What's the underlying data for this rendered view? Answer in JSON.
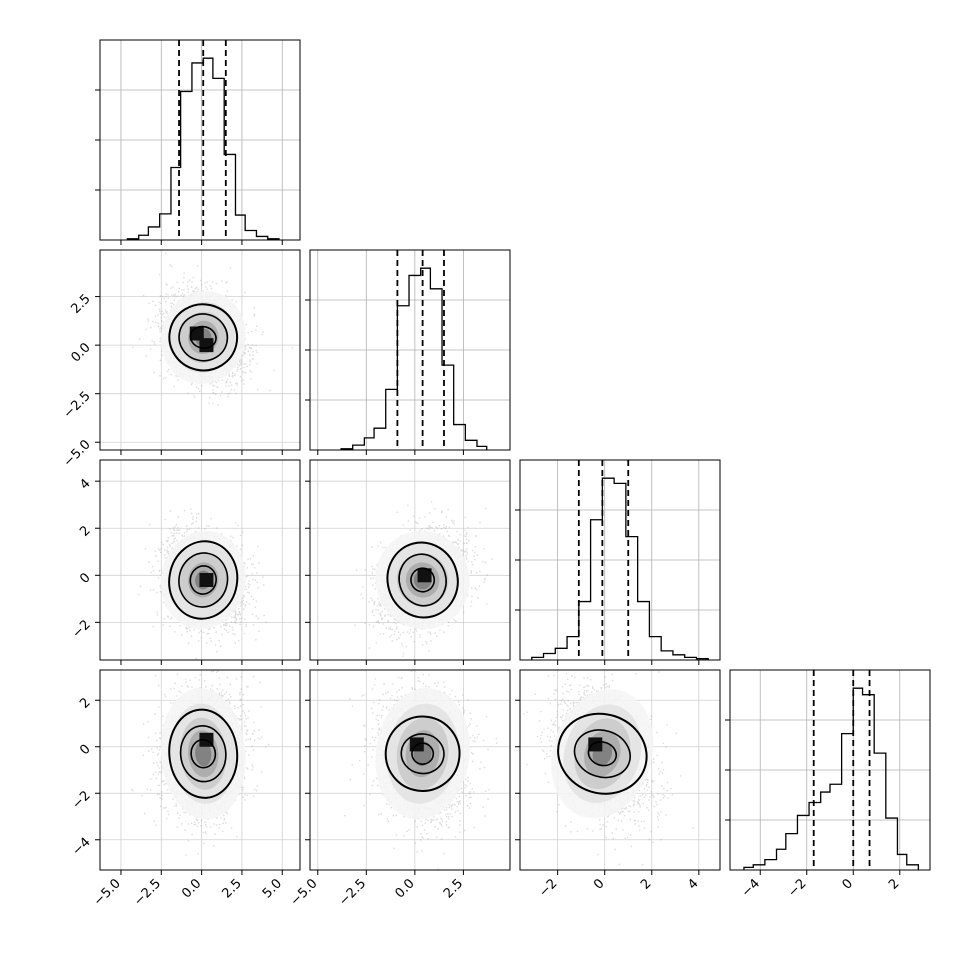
{
  "chart_data": {
    "type": "corner",
    "parameters": 4,
    "grid": true,
    "tick_labels": {
      "x": [
        [
          "−5.0",
          "−2.5",
          "0.0",
          "2.5",
          "5.0"
        ],
        [
          "−5.0",
          "−2.5",
          "0.0",
          "2.5"
        ],
        [
          "−2",
          "0",
          "2",
          "4"
        ],
        [
          "−4",
          "−2",
          "0",
          "2"
        ]
      ],
      "y": [
        [],
        [
          "2.5",
          "0.0",
          "−2.5",
          "−5.0"
        ],
        [
          "4",
          "2",
          "0",
          "−2"
        ],
        [
          "2",
          "0",
          "−2",
          "−4"
        ]
      ]
    },
    "marginals": [
      {
        "xlim": [
          -6.3,
          6.1
        ],
        "quantiles": [
          -1.4,
          0.1,
          1.5
        ],
        "bin_edges": [
          -4.6,
          -3.9,
          -3.3,
          -2.6,
          -1.9,
          -1.3,
          -0.6,
          0.1,
          0.7,
          1.4,
          2.1,
          2.7,
          3.4,
          4.1,
          4.8
        ],
        "counts": [
          1,
          4,
          11,
          22,
          61,
          125,
          149,
          153,
          136,
          72,
          21,
          8,
          3,
          1
        ]
      },
      {
        "xlim": [
          -5.4,
          4.9
        ],
        "quantiles": [
          -0.9,
          0.4,
          1.5
        ],
        "bin_edges": [
          -3.8,
          -3.2,
          -2.6,
          -2.1,
          -1.5,
          -0.9,
          -0.3,
          0.3,
          0.8,
          1.4,
          2.0,
          2.6,
          3.2,
          3.7
        ],
        "counts": [
          1,
          4,
          10,
          18,
          50,
          119,
          144,
          150,
          133,
          70,
          21,
          8,
          3
        ]
      },
      {
        "xlim": [
          -3.6,
          4.9
        ],
        "quantiles": [
          -1.1,
          -0.1,
          1.0
        ],
        "bin_edges": [
          -3.1,
          -2.6,
          -2.1,
          -1.6,
          -1.1,
          -0.6,
          -0.1,
          0.4,
          0.9,
          1.4,
          1.9,
          2.4,
          2.9,
          3.4,
          3.9,
          4.4
        ],
        "counts": [
          2,
          5,
          9,
          18,
          45,
          108,
          140,
          136,
          95,
          45,
          18,
          7,
          4,
          2,
          1
        ]
      },
      {
        "xlim": [
          -5.3,
          3.3
        ],
        "quantiles": [
          -1.7,
          0.0,
          0.7
        ],
        "bin_edges": [
          -4.7,
          -4.3,
          -3.8,
          -3.3,
          -2.9,
          -2.4,
          -1.9,
          -1.4,
          -1.0,
          -0.5,
          0.0,
          0.4,
          0.9,
          1.4,
          1.9,
          2.3,
          2.8
        ],
        "counts": [
          2,
          4,
          8,
          16,
          28,
          42,
          52,
          60,
          66,
          105,
          140,
          135,
          90,
          40,
          12,
          4
        ]
      }
    ],
    "joints": [
      {
        "row": 1,
        "col": 0,
        "xlim": [
          -6.3,
          6.1
        ],
        "ylim": [
          -5.4,
          4.9
        ],
        "mean": [
          0.1,
          0.4
        ],
        "sd": [
          1.25,
          1.15
        ],
        "corr": -0.25,
        "contours": [
          [
            0.8,
            0.55
          ],
          [
            1.5,
            1.2
          ],
          [
            2.1,
            1.7
          ]
        ],
        "modes": [
          [
            -0.3,
            0.6
          ],
          [
            0.3,
            0.0
          ]
        ]
      },
      {
        "row": 2,
        "col": 0,
        "xlim": [
          -6.3,
          6.1
        ],
        "ylim": [
          -3.6,
          4.9
        ],
        "mean": [
          0.1,
          -0.2
        ],
        "sd": [
          1.25,
          1.0
        ],
        "corr": -0.2,
        "contours": [
          [
            0.8,
            0.6
          ],
          [
            1.5,
            1.15
          ],
          [
            2.1,
            1.65
          ]
        ],
        "modes": [
          [
            0.3,
            -0.2
          ]
        ]
      },
      {
        "row": 2,
        "col": 1,
        "xlim": [
          -5.4,
          4.9
        ],
        "ylim": [
          -3.6,
          4.9
        ],
        "mean": [
          0.4,
          -0.2
        ],
        "sd": [
          1.15,
          1.0
        ],
        "corr": 0.3,
        "contours": [
          [
            0.6,
            0.5
          ],
          [
            1.2,
            1.1
          ],
          [
            1.8,
            1.6
          ]
        ],
        "modes": [
          [
            0.5,
            0.0
          ]
        ]
      },
      {
        "row": 3,
        "col": 0,
        "xlim": [
          -6.3,
          6.1
        ],
        "ylim": [
          -5.3,
          3.3
        ],
        "mean": [
          0.1,
          -0.3
        ],
        "sd": [
          1.25,
          1.35
        ],
        "corr": 0.1,
        "contours": [
          [
            0.75,
            0.6
          ],
          [
            1.4,
            1.2
          ],
          [
            2.1,
            1.9
          ]
        ],
        "modes": [
          [
            0.3,
            0.3
          ]
        ]
      },
      {
        "row": 3,
        "col": 1,
        "xlim": [
          -5.4,
          4.9
        ],
        "ylim": [
          -5.3,
          3.3
        ],
        "mean": [
          0.4,
          -0.3
        ],
        "sd": [
          1.15,
          1.35
        ],
        "corr": -0.15,
        "contours": [
          [
            0.55,
            0.45
          ],
          [
            1.1,
            0.85
          ],
          [
            1.9,
            1.6
          ]
        ],
        "modes": [
          [
            0.1,
            0.1
          ]
        ]
      },
      {
        "row": 3,
        "col": 2,
        "xlim": [
          -3.6,
          4.9
        ],
        "ylim": [
          -5.3,
          3.3
        ],
        "mean": [
          -0.1,
          -0.3
        ],
        "sd": [
          1.0,
          1.35
        ],
        "corr": -0.35,
        "contours": [
          [
            0.6,
            0.5
          ],
          [
            1.2,
            1.0
          ],
          [
            1.9,
            1.7
          ]
        ],
        "modes": [
          [
            -0.4,
            0.1
          ]
        ]
      }
    ]
  }
}
